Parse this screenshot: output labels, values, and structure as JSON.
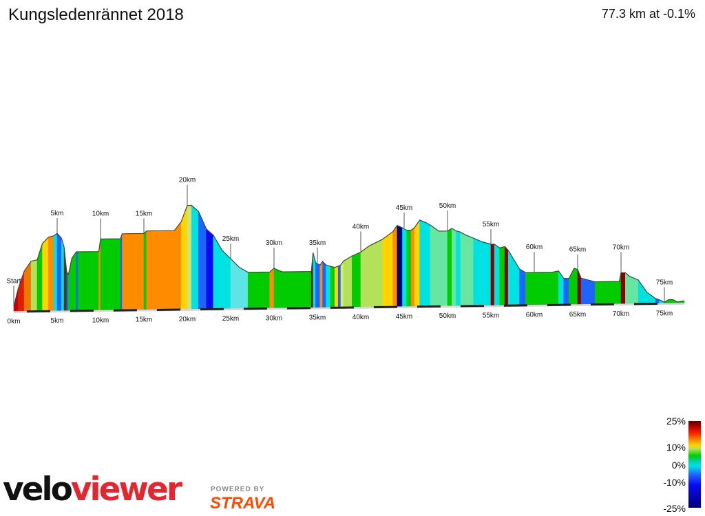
{
  "header": {
    "title": "Kungsledenrännet 2018",
    "stats": "77.3 km at -0.1%"
  },
  "chart_data": {
    "type": "area",
    "title": "Kungsledenrännet 2018",
    "x_unit": "km",
    "x_range": [
      0,
      77.3
    ],
    "x_ticks": [
      "0km",
      "5km",
      "10km",
      "15km",
      "20km",
      "25km",
      "30km",
      "35km",
      "40km",
      "45km",
      "50km",
      "55km",
      "60km",
      "65km",
      "70km",
      "75km"
    ],
    "markers": [
      "Start",
      "5km",
      "10km",
      "15km",
      "20km",
      "25km",
      "30km",
      "35km",
      "40km",
      "45km",
      "50km",
      "55km",
      "60km",
      "65km",
      "70km",
      "75km"
    ],
    "series": [
      {
        "x": [
          0,
          0.5,
          1.2,
          2.0,
          2.7,
          3.3,
          4.0,
          4.6,
          5.0,
          5.5,
          5.8,
          6.1,
          6.3,
          6.7,
          7.2,
          7.4,
          7.6,
          9.8,
          10.0,
          12.3,
          12.5,
          15.0,
          15.3,
          18.5,
          19.3,
          20.0,
          20.5,
          21.3,
          22.2,
          23.0,
          24.0,
          25.0,
          26.0,
          27.0,
          27.3,
          29.5,
          30.0,
          30.6,
          31.0,
          34.3,
          34.5,
          34.8,
          35.3,
          35.6,
          36.0,
          36.5,
          37.0,
          37.4,
          37.7,
          38.0,
          39.0,
          40.0,
          41.0,
          42.5,
          43.7,
          44.2,
          44.8,
          45.3,
          45.8,
          46.2,
          46.8,
          47.5,
          48.0,
          49.0,
          50.0,
          50.5,
          51.0,
          51.5,
          52.0,
          53.0,
          54.0,
          55.0,
          55.4,
          56.0,
          56.6,
          57.0,
          57.6,
          58.3,
          59.0,
          61.0,
          62.0,
          62.8,
          63.4,
          64.0,
          64.6,
          65.0,
          65.4,
          67.0,
          68.0,
          69.8,
          70.0,
          70.5,
          71.0,
          72.0,
          73.0,
          74.0,
          74.4,
          75.0,
          75.5,
          76.0,
          76.5,
          77.3
        ],
        "elevation_rel": [
          0.08,
          0.22,
          0.36,
          0.44,
          0.45,
          0.58,
          0.63,
          0.64,
          0.66,
          0.62,
          0.55,
          0.35,
          0.33,
          0.46,
          0.51,
          0.51,
          0.51,
          0.51,
          0.61,
          0.61,
          0.65,
          0.65,
          0.67,
          0.67,
          0.74,
          0.87,
          0.87,
          0.82,
          0.68,
          0.63,
          0.51,
          0.44,
          0.37,
          0.33,
          0.33,
          0.33,
          0.36,
          0.34,
          0.33,
          0.33,
          0.48,
          0.4,
          0.38,
          0.41,
          0.38,
          0.37,
          0.36,
          0.37,
          0.38,
          0.41,
          0.45,
          0.48,
          0.53,
          0.58,
          0.64,
          0.69,
          0.67,
          0.65,
          0.65,
          0.67,
          0.73,
          0.71,
          0.69,
          0.64,
          0.64,
          0.66,
          0.64,
          0.63,
          0.61,
          0.58,
          0.55,
          0.53,
          0.53,
          0.5,
          0.51,
          0.48,
          0.41,
          0.33,
          0.3,
          0.3,
          0.3,
          0.31,
          0.25,
          0.25,
          0.33,
          0.32,
          0.25,
          0.22,
          0.22,
          0.22,
          0.29,
          0.29,
          0.26,
          0.23,
          0.13,
          0.08,
          0.07,
          0.05,
          0.07,
          0.07,
          0.05,
          0.06
        ],
        "gradient_colors": [
          "#c80000",
          "#dc1e00",
          "#f07800",
          "#b4e15a",
          "#00cc00",
          "#ffd400",
          "#ff8c00",
          "#00e1e1",
          "#1e64ff",
          "#00e1e1",
          "#5a3000",
          "#1e64ff",
          "#00cc00",
          "#00cc00",
          "#1e64ff",
          "#00cc00",
          "#00cc00",
          "#ff8c00",
          "#00cc00",
          "#1e64ff",
          "#ff8c00",
          "#00cc00",
          "#ff8c00",
          "#ff8c00",
          "#ffd400",
          "#c8e67a",
          "#00e1e1",
          "#1e64ff",
          "#0a0af0",
          "#00e1e1",
          "#00e1e1",
          "#5ee4e4",
          "#5ee4e4",
          "#00cc00",
          "#00cc00",
          "#ff8c00",
          "#00cc00",
          "#00cc00",
          "#00cc00",
          "#8a0000",
          "#00e1e1",
          "#1e64ff",
          "#ff8c00",
          "#1e64ff",
          "#00e1e1",
          "#00cc00",
          "#ffd400",
          "#1e64ff",
          "#d8ee6a",
          "#b4e15a",
          "#00cc00",
          "#b4e15a",
          "#b4e15a",
          "#ffd400",
          "#ff8c00",
          "#00007a",
          "#00e1e1",
          "#00cc00",
          "#ff8c00",
          "#ffd400",
          "#00e1e1",
          "#00e1e1",
          "#66e6a0",
          "#66e6a0",
          "#00cc00",
          "#66e6a0",
          "#00e1e1",
          "#66e6a0",
          "#66e6a0",
          "#00e1e1",
          "#00e1e1",
          "#8a0000",
          "#00e1e1",
          "#00cc00",
          "#8a0000",
          "#00e1e1",
          "#00e1e1",
          "#1e64ff",
          "#00cc00",
          "#00cc00",
          "#00cc00",
          "#00e1e1",
          "#1e64ff",
          "#00cc00",
          "#00cc00",
          "#8a0000",
          "#1e64ff",
          "#00cc00",
          "#00cc00",
          "#00cc00",
          "#8a0000",
          "#66e6a0",
          "#66e6a0",
          "#00e1e1",
          "#00e1e1",
          "#1e64ff",
          "#00e1e1",
          "#00cc00",
          "#00cc00",
          "#00cc00",
          "#00cc00",
          "#00cc00"
        ]
      }
    ],
    "legend": {
      "labels": [
        "25%",
        "10%",
        "0%",
        "-10%",
        "-25%"
      ],
      "values": [
        25,
        10,
        0,
        -10,
        -25
      ]
    }
  },
  "branding": {
    "logo_part1": "velo",
    "logo_part2": "viewer",
    "powered_by": "POWERED BY",
    "strava": "STRAVA"
  },
  "colors": {
    "outline": "#444444",
    "axis": "#d8d8d8",
    "road_dark": "#222222",
    "logo_red": "#e3262f",
    "strava_orange": "#fc4c02"
  }
}
